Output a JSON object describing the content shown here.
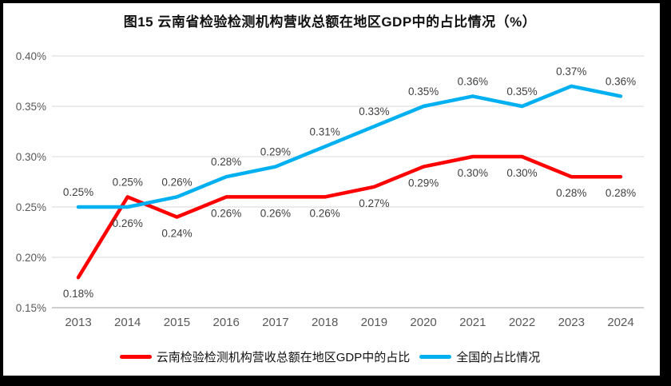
{
  "chart_data": {
    "type": "line",
    "title": "图15 云南省检验检测机构营收总额在地区GDP中的占比情况（%）",
    "categories": [
      "2013",
      "2014",
      "2015",
      "2016",
      "2017",
      "2018",
      "2019",
      "2020",
      "2021",
      "2022",
      "2023",
      "2024"
    ],
    "series": [
      {
        "name": "云南检验检测机构营收总额在地区GDP中的占比",
        "color": "#ff0000",
        "values": [
          0.18,
          0.26,
          0.24,
          0.26,
          0.26,
          0.26,
          0.27,
          0.29,
          0.3,
          0.3,
          0.28,
          0.28
        ],
        "labels": [
          "0.18%",
          "0.26%",
          "0.24%",
          "0.26%",
          "0.26%",
          "0.26%",
          "0.27%",
          "0.29%",
          "0.30%",
          "0.30%",
          "0.28%",
          "0.28%"
        ],
        "label_position": "below"
      },
      {
        "name": "全国的占比情况",
        "color": "#00b0f0",
        "values": [
          0.25,
          0.25,
          0.26,
          0.28,
          0.29,
          0.31,
          0.33,
          0.35,
          0.36,
          0.35,
          0.37,
          0.36
        ],
        "labels": [
          "0.25%",
          "0.25%",
          "0.26%",
          "0.28%",
          "0.29%",
          "0.31%",
          "0.33%",
          "0.35%",
          "0.36%",
          "0.35%",
          "0.37%",
          "0.36%"
        ],
        "label_position": "above"
      }
    ],
    "ylim": [
      0.15,
      0.4
    ],
    "ytick_step": 0.05,
    "ytick_labels": [
      "0.15%",
      "0.20%",
      "0.25%",
      "0.30%",
      "0.35%",
      "0.40%"
    ],
    "grid": "horizontal",
    "legend_position": "bottom"
  },
  "colors": {
    "grid_line": "#d9d9d9",
    "axis_line": "#bfbfbf",
    "tick_text": "#595959",
    "data_label_text": "#3f3f3f",
    "frame": "#000000",
    "background": "#ffffff"
  }
}
